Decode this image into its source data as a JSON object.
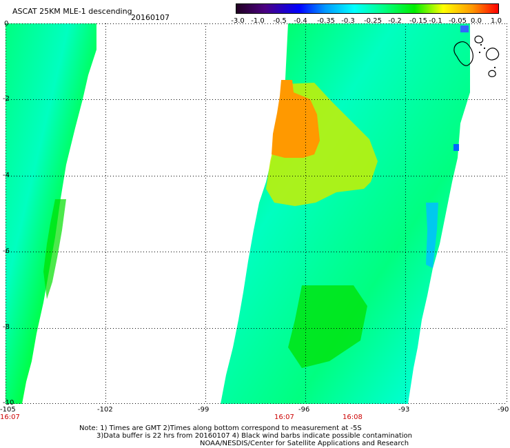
{
  "header": {
    "title": "ASCAT 25KM MLE-1 descending",
    "date": "20160107"
  },
  "colorbar": {
    "labels": [
      "-3.0",
      "-1.0",
      "-0.5",
      "-0.4",
      "-0.35",
      "-0.3",
      "-0.25",
      "-0.2",
      "-0.15",
      "-0.1",
      "-0.05",
      "0.0",
      "1.0"
    ],
    "colors": [
      "#220022",
      "#4b0082",
      "#0000ff",
      "#0099ff",
      "#00ffff",
      "#00ff88",
      "#00ee00",
      "#ffff00",
      "#ff9900",
      "#ff0000"
    ]
  },
  "map": {
    "lon_labels": [
      "-105",
      "-102",
      "-99",
      "-96",
      "-93",
      "-90"
    ],
    "lat_labels": [
      "0",
      "-2",
      "-4",
      "-6",
      "-8",
      "-10"
    ],
    "time_labels": [
      "16:07",
      "16:07",
      "16:08"
    ],
    "swaths": [
      {
        "name": "west-swath",
        "colors": [
          "#00ff80",
          "#00ff40",
          "#00ffc0",
          "#00e000"
        ]
      },
      {
        "name": "east-swath",
        "colors": [
          "#00ff80",
          "#00ff40",
          "#00ffc0",
          "#00e000",
          "#ffff00",
          "#ff9900",
          "#00c0ff",
          "#0000ff"
        ]
      }
    ]
  },
  "notes": [
    "Note: 1) Times are GMT 2)Times along bottom correspond to measurement at -5S",
    "3)Data buffer is 22 hrs from 20160107 4) Black wind barbs indicate possible contamination",
    "NOAA/NESDIS/Center for Satellite Applications and Research"
  ]
}
